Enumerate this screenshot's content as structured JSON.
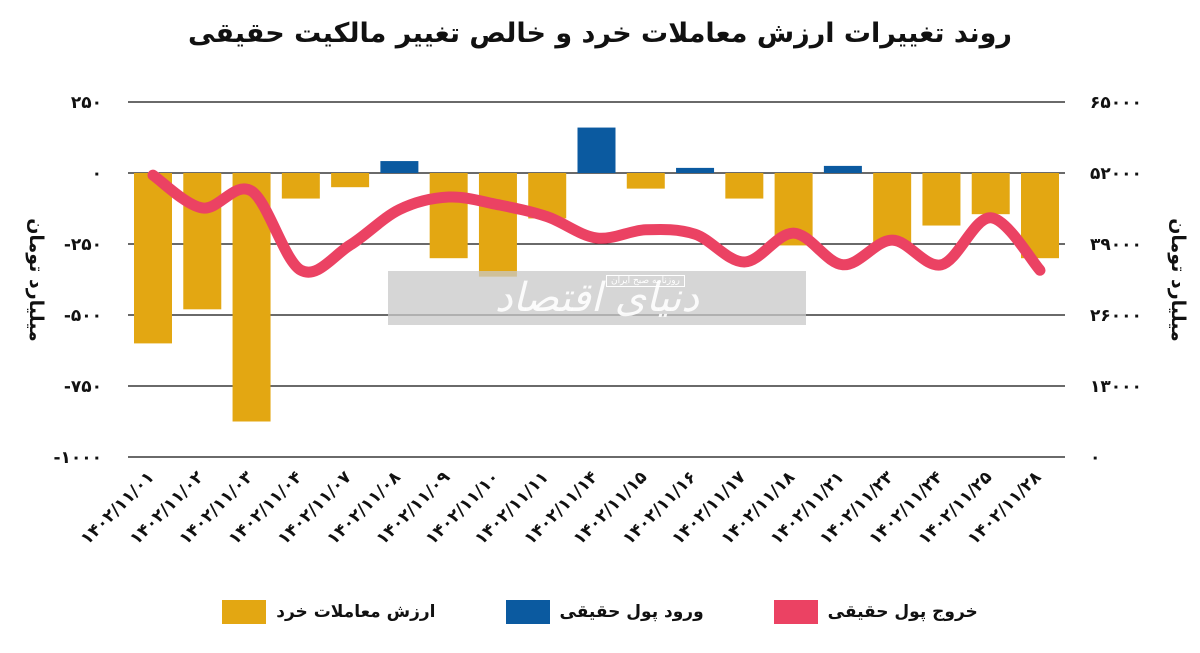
{
  "title": "روند تغییرات ارزش معاملات خرد و خالص تغییر مالکیت حقیقی",
  "colors": {
    "retail": "#E3A712",
    "inflow": "#0B5AA0",
    "outflow": "#EB4263",
    "grid": "#111111"
  },
  "watermark": {
    "main": "دنیای اقتصاد",
    "sub": "روزنامه صبح ایران"
  },
  "legend": [
    {
      "label": "خروج پول حقیقی",
      "color": "#EB4263"
    },
    {
      "label": "ورود پول حقیقی",
      "color": "#0B5AA0"
    },
    {
      "label": "ارزش معاملات خرد",
      "color": "#E3A712"
    }
  ],
  "chart_data": {
    "type": "bar",
    "title": "روند تغییرات ارزش معاملات خرد و خالص تغییر مالکیت حقیقی",
    "xlabel": "",
    "ylabel": "میلیارد تومان",
    "ylabel_right": "میلیارد تومان",
    "ylim": [
      -1000,
      250
    ],
    "ylim_right": [
      0,
      65000
    ],
    "yticks": [
      "۲۵۰",
      "۰",
      "-۲۵۰",
      "-۵۰۰",
      "-۷۵۰",
      "-۱۰۰۰"
    ],
    "yticks_values": [
      250,
      0,
      -250,
      -500,
      -750,
      -1000
    ],
    "yticks_right": [
      "۶۵۰۰۰",
      "۵۲۰۰۰",
      "۳۹۰۰۰",
      "۲۶۰۰۰",
      "۱۳۰۰۰",
      "۰"
    ],
    "yticks_right_values": [
      65000,
      52000,
      39000,
      26000,
      13000,
      0
    ],
    "grid": true,
    "legend_position": "bottom",
    "categories": [
      "۱۴۰۲/۱۱/۰۱",
      "۱۴۰۲/۱۱/۰۲",
      "۱۴۰۲/۱۱/۰۳",
      "۱۴۰۲/۱۱/۰۴",
      "۱۴۰۲/۱۱/۰۷",
      "۱۴۰۲/۱۱/۰۸",
      "۱۴۰۲/۱۱/۰۹",
      "۱۴۰۲/۱۱/۱۰",
      "۱۴۰۲/۱۱/۱۱",
      "۱۴۰۲/۱۱/۱۴",
      "۱۴۰۲/۱۱/۱۵",
      "۱۴۰۲/۱۱/۱۶",
      "۱۴۰۲/۱۱/۱۷",
      "۱۴۰۲/۱۱/۱۸",
      "۱۴۰۲/۱۱/۲۱",
      "۱۴۰۲/۱۱/۲۳",
      "۱۴۰۲/۱۱/۲۴",
      "۱۴۰۲/۱۱/۲۵",
      "۱۴۰۲/۱۱/۲۸"
    ],
    "series": [
      {
        "name": "ارزش معاملات خرد",
        "type": "bar",
        "axis": "left",
        "color": "#E3A712",
        "values": [
          -600,
          -480,
          -875,
          -90,
          -50,
          0,
          -300,
          -365,
          -160,
          0,
          -55,
          0,
          -90,
          -255,
          0,
          -245,
          -185,
          -145,
          -300
        ]
      },
      {
        "name": "ورود پول حقیقی",
        "type": "bar",
        "axis": "left",
        "color": "#0B5AA0",
        "values": [
          0,
          0,
          0,
          0,
          0,
          42,
          0,
          0,
          0,
          160,
          0,
          18,
          0,
          0,
          25,
          0,
          0,
          0,
          0
        ]
      },
      {
        "name": "خروج پول حقیقی",
        "type": "line",
        "axis": "right",
        "color": "#EB4263",
        "values": [
          51600,
          45600,
          48700,
          34200,
          38800,
          45300,
          47600,
          46200,
          44000,
          40100,
          41600,
          40800,
          35700,
          41000,
          35200,
          39700,
          35200,
          43800,
          34200
        ]
      }
    ]
  }
}
